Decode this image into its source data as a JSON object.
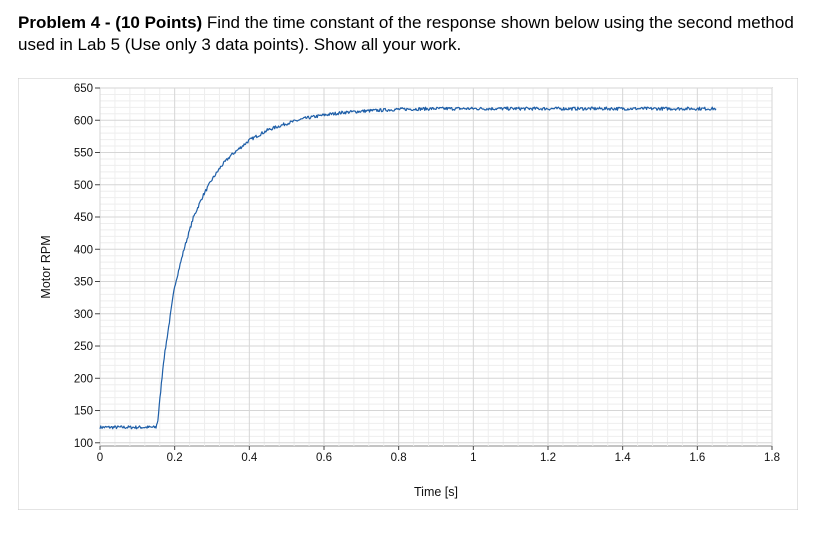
{
  "problem": {
    "heading": "Problem 4 - (10 Points)",
    "body": " Find the time constant of the response shown below using the second method used in Lab 5 (Use only 3 data points).  Show all your work."
  },
  "chart_data": {
    "type": "line",
    "xlabel": "Time [s]",
    "ylabel": "Motor RPM",
    "xlim": [
      0,
      1.8
    ],
    "ylim": [
      95,
      650
    ],
    "x_ticks": [
      0,
      0.2,
      0.4,
      0.6,
      0.8,
      1,
      1.2,
      1.4,
      1.6,
      1.8
    ],
    "x_tick_labels": [
      "0",
      "0.2",
      "0.4",
      "0.6",
      "0.8",
      "1",
      "1.2",
      "1.4",
      "1.6",
      "1.8"
    ],
    "y_ticks": [
      100,
      150,
      200,
      250,
      300,
      350,
      400,
      450,
      500,
      550,
      600,
      650
    ],
    "y_tick_labels": [
      "100",
      "150",
      "200",
      "250",
      "300",
      "350",
      "400",
      "450",
      "500",
      "550",
      "600",
      "650"
    ],
    "grid": true,
    "series": [
      {
        "color": "#1f5fa8",
        "x": [
          0,
          0.05,
          0.1,
          0.15,
          0.155,
          0.17,
          0.2,
          0.225,
          0.25,
          0.275,
          0.3,
          0.325,
          0.35,
          0.4,
          0.45,
          0.5,
          0.55,
          0.6,
          0.65,
          0.7,
          0.8,
          0.9,
          1.0,
          1.1,
          1.2,
          1.3,
          1.4,
          1.5,
          1.6,
          1.65
        ],
        "y": [
          124,
          124,
          124,
          124,
          135,
          225,
          343,
          400,
          449,
          482,
          508,
          529,
          545,
          569,
          585,
          595,
          603,
          608,
          612,
          614,
          617,
          618,
          618,
          618,
          618,
          618,
          618,
          618,
          618,
          618
        ]
      }
    ]
  }
}
